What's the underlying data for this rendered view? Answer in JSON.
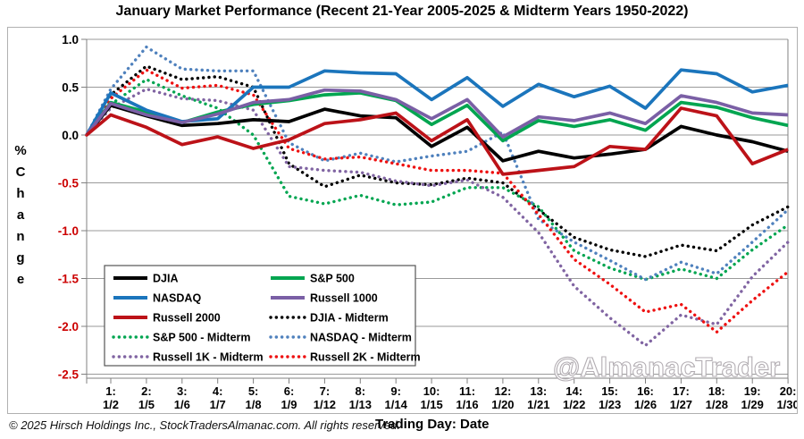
{
  "title": "January Market Performance (Recent 21-Year 2005-2025 & Midterm Years 1950-2022)",
  "watermark": "@AlmanacTrader",
  "footer": {
    "copyright": "© 2025 Hirsch Holdings Inc., StockTradersAlmanac.com. All rights reserved.",
    "trading_day_label": "Trading Day: Date"
  },
  "y_axis": {
    "label_chars": [
      "%",
      "C",
      "h",
      "a",
      "n",
      "g",
      "e"
    ],
    "ticks": [
      {
        "value": 1.0,
        "label": "1.0",
        "color": "#000000"
      },
      {
        "value": 0.5,
        "label": "0.5",
        "color": "#000000"
      },
      {
        "value": 0.0,
        "label": "0.0",
        "color": "#000000"
      },
      {
        "value": -0.5,
        "label": "-0.5",
        "color": "#cc0000"
      },
      {
        "value": -1.0,
        "label": "-1.0",
        "color": "#cc0000"
      },
      {
        "value": -1.5,
        "label": "-1.5",
        "color": "#cc0000"
      },
      {
        "value": -2.0,
        "label": "-2.0",
        "color": "#cc0000"
      },
      {
        "value": -2.5,
        "label": "-2.5",
        "color": "#cc0000"
      }
    ]
  },
  "x_axis": {
    "labels": [
      {
        "day": "1:",
        "date": "1/2"
      },
      {
        "day": "2:",
        "date": "1/5"
      },
      {
        "day": "3:",
        "date": "1/6"
      },
      {
        "day": "4:",
        "date": "1/7"
      },
      {
        "day": "5:",
        "date": "1/8"
      },
      {
        "day": "6:",
        "date": "1/9"
      },
      {
        "day": "7:",
        "date": "1/12"
      },
      {
        "day": "8:",
        "date": "1/13"
      },
      {
        "day": "9:",
        "date": "1/14"
      },
      {
        "day": "10:",
        "date": "1/15"
      },
      {
        "day": "11:",
        "date": "1/16"
      },
      {
        "day": "12:",
        "date": "1/20"
      },
      {
        "day": "13:",
        "date": "1/21"
      },
      {
        "day": "14:",
        "date": "1/22"
      },
      {
        "day": "15:",
        "date": "1/23"
      },
      {
        "day": "16:",
        "date": "1/26"
      },
      {
        "day": "17:",
        "date": "1/27"
      },
      {
        "day": "18:",
        "date": "1/28"
      },
      {
        "day": "19:",
        "date": "1/29"
      },
      {
        "day": "20:",
        "date": "1/30"
      }
    ]
  },
  "chart_data": {
    "type": "line",
    "x_note": "first value is the zero start point on the y-axis, then trading days 1-20",
    "ylim": [
      -2.5,
      1.0
    ],
    "grid": "horizontal",
    "legend_position": "inside-lower-left",
    "series": [
      {
        "name": "DJIA",
        "style": "solid",
        "color": "#000000",
        "values": [
          0,
          0.31,
          0.2,
          0.1,
          0.12,
          0.16,
          0.14,
          0.27,
          0.2,
          0.18,
          -0.12,
          0.08,
          -0.27,
          -0.17,
          -0.24,
          -0.2,
          -0.15,
          0.09,
          0.0,
          -0.07,
          -0.17
        ]
      },
      {
        "name": "S&P 500",
        "style": "solid",
        "color": "#00a550",
        "values": [
          0,
          0.34,
          0.24,
          0.13,
          0.24,
          0.32,
          0.36,
          0.42,
          0.44,
          0.36,
          0.11,
          0.31,
          -0.06,
          0.15,
          0.09,
          0.16,
          0.05,
          0.34,
          0.29,
          0.18,
          0.1
        ]
      },
      {
        "name": "NASDAQ",
        "style": "solid",
        "color": "#1b75bc",
        "values": [
          0,
          0.44,
          0.26,
          0.14,
          0.17,
          0.5,
          0.5,
          0.67,
          0.65,
          0.64,
          0.37,
          0.6,
          0.3,
          0.53,
          0.4,
          0.51,
          0.28,
          0.68,
          0.64,
          0.45,
          0.52
        ]
      },
      {
        "name": "Russell 1000",
        "style": "solid",
        "color": "#7a5fa5",
        "values": [
          0,
          0.33,
          0.21,
          0.13,
          0.22,
          0.34,
          0.37,
          0.47,
          0.46,
          0.37,
          0.17,
          0.37,
          -0.02,
          0.19,
          0.15,
          0.23,
          0.12,
          0.41,
          0.34,
          0.23,
          0.21
        ]
      },
      {
        "name": "Russell 2000",
        "style": "solid",
        "color": "#bc1218",
        "values": [
          0,
          0.21,
          0.08,
          -0.1,
          -0.02,
          -0.14,
          -0.05,
          0.12,
          0.16,
          0.23,
          -0.06,
          0.16,
          -0.41,
          -0.37,
          -0.33,
          -0.12,
          -0.15,
          0.28,
          0.2,
          -0.3,
          -0.15
        ]
      },
      {
        "name": "DJIA - Midterm",
        "style": "dotted",
        "color": "#000000",
        "values": [
          0,
          0.42,
          0.72,
          0.58,
          0.61,
          0.5,
          -0.3,
          -0.54,
          -0.42,
          -0.5,
          -0.52,
          -0.45,
          -0.5,
          -0.78,
          -1.07,
          -1.2,
          -1.27,
          -1.15,
          -1.21,
          -0.94,
          -0.75
        ]
      },
      {
        "name": "S&P 500 - Midterm",
        "style": "dotted",
        "color": "#00a550",
        "values": [
          0,
          0.32,
          0.58,
          0.41,
          0.28,
          0.0,
          -0.64,
          -0.72,
          -0.63,
          -0.73,
          -0.7,
          -0.55,
          -0.55,
          -0.75,
          -1.21,
          -1.39,
          -1.51,
          -1.4,
          -1.5,
          -1.2,
          -0.94
        ]
      },
      {
        "name": "NASDAQ - Midterm",
        "style": "dotted",
        "color": "#4f81bd",
        "values": [
          0,
          0.48,
          0.92,
          0.69,
          0.67,
          0.67,
          -0.08,
          -0.27,
          -0.19,
          -0.28,
          -0.22,
          -0.17,
          0.03,
          -0.88,
          -1.12,
          -1.31,
          -1.51,
          -1.33,
          -1.45,
          -1.12,
          -0.78
        ]
      },
      {
        "name": "Russell 1K - Midterm",
        "style": "dotted",
        "color": "#8064a2",
        "values": [
          0,
          0.28,
          0.48,
          0.38,
          0.36,
          0.26,
          -0.33,
          -0.37,
          -0.39,
          -0.48,
          -0.53,
          -0.47,
          -0.65,
          -1.02,
          -1.58,
          -1.91,
          -2.2,
          -1.88,
          -1.98,
          -1.48,
          -1.12
        ]
      },
      {
        "name": "Russell 2K - Midterm",
        "style": "dotted",
        "color": "#ee1111",
        "values": [
          0,
          0.38,
          0.68,
          0.49,
          0.52,
          0.42,
          -0.14,
          -0.25,
          -0.23,
          -0.3,
          -0.37,
          -0.37,
          -0.4,
          -0.83,
          -1.3,
          -1.56,
          -1.85,
          -1.77,
          -2.06,
          -1.73,
          -1.43
        ]
      }
    ]
  }
}
